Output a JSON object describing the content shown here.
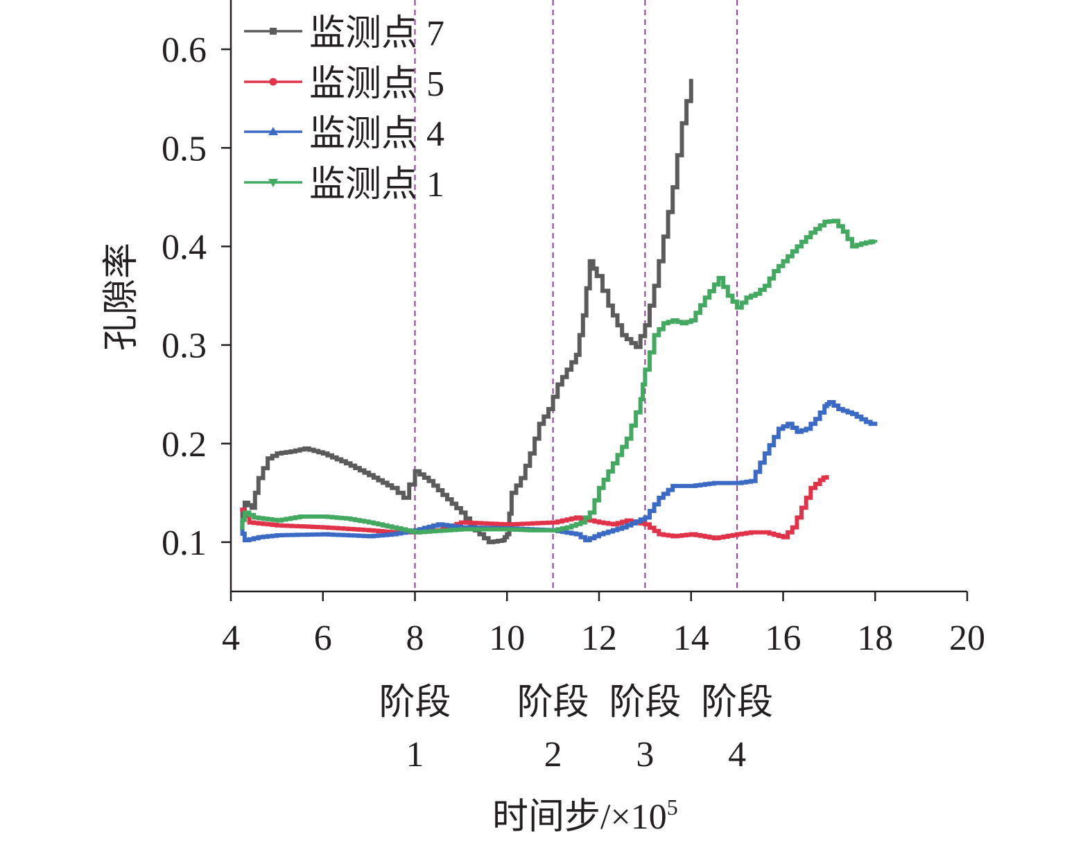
{
  "chart_data": {
    "type": "line",
    "title": "",
    "xlabel": "时间步/×10",
    "xlabel_sup": "5",
    "ylabel": "孔隙率",
    "xlim": [
      4,
      20
    ],
    "ylim": [
      0.05,
      0.65
    ],
    "xticks": [
      4,
      6,
      8,
      10,
      12,
      14,
      16,
      18,
      20
    ],
    "xtick_labels": [
      "4",
      "6",
      "8",
      "10",
      "12",
      "14",
      "16",
      "18",
      "20"
    ],
    "yticks": [
      0.1,
      0.2,
      0.3,
      0.4,
      0.5,
      0.6
    ],
    "ytick_labels": [
      "0.1",
      "0.2",
      "0.3",
      "0.4",
      "0.5",
      "0.6"
    ],
    "grid": false,
    "legend_position": "top-left",
    "stage_lines": [
      8,
      11,
      13,
      15
    ],
    "stage_line_color": "#8e3c9e",
    "stages": [
      {
        "x": 8,
        "word": "阶段",
        "num": "1"
      },
      {
        "x": 11,
        "word": "阶段",
        "num": "2"
      },
      {
        "x": 13,
        "word": "阶段",
        "num": "3"
      },
      {
        "x": 15,
        "word": "阶段",
        "num": "4"
      }
    ],
    "series": [
      {
        "name": "监测点 7",
        "color": "#5b5b5b",
        "marker": "square",
        "x": [
          4.2,
          4.3,
          4.45,
          4.6,
          4.8,
          5.0,
          5.3,
          5.6,
          6.0,
          6.5,
          7.0,
          7.5,
          7.75,
          8.0,
          8.3,
          8.6,
          9.0,
          9.3,
          9.6,
          9.9,
          10.0,
          10.1,
          10.3,
          10.5,
          10.7,
          10.9,
          11.1,
          11.3,
          11.5,
          11.65,
          11.8,
          11.95,
          12.2,
          12.5,
          12.8,
          13.0,
          13.2,
          13.4,
          13.6,
          13.8,
          14.0
        ],
        "y": [
          0.12,
          0.14,
          0.135,
          0.165,
          0.185,
          0.19,
          0.192,
          0.195,
          0.19,
          0.18,
          0.168,
          0.155,
          0.145,
          0.172,
          0.162,
          0.148,
          0.13,
          0.112,
          0.1,
          0.102,
          0.108,
          0.15,
          0.165,
          0.19,
          0.22,
          0.235,
          0.26,
          0.275,
          0.29,
          0.33,
          0.385,
          0.37,
          0.34,
          0.31,
          0.298,
          0.32,
          0.36,
          0.41,
          0.46,
          0.525,
          0.57
        ]
      },
      {
        "name": "监测点 5",
        "color": "#e0334a",
        "marker": "circle",
        "x": [
          4.2,
          4.4,
          5.0,
          6.0,
          7.0,
          7.5,
          8.0,
          8.5,
          9.0,
          10.0,
          11.0,
          11.5,
          12.0,
          12.3,
          12.6,
          13.0,
          13.3,
          13.6,
          14.0,
          14.5,
          15.0,
          15.3,
          15.6,
          16.0,
          16.2,
          16.4,
          16.6,
          16.8,
          16.95
        ],
        "y": [
          0.133,
          0.12,
          0.117,
          0.115,
          0.112,
          0.11,
          0.11,
          0.112,
          0.12,
          0.118,
          0.12,
          0.125,
          0.12,
          0.118,
          0.122,
          0.118,
          0.108,
          0.106,
          0.108,
          0.104,
          0.108,
          0.11,
          0.11,
          0.105,
          0.115,
          0.135,
          0.155,
          0.163,
          0.168
        ]
      },
      {
        "name": "监测点 4",
        "color": "#3a6ac4",
        "marker": "triangle-up",
        "x": [
          4.2,
          4.3,
          4.6,
          5.0,
          6.0,
          7.0,
          7.5,
          8.0,
          8.5,
          9.0,
          10.0,
          11.0,
          11.5,
          11.7,
          12.0,
          12.5,
          13.0,
          13.3,
          13.6,
          14.0,
          14.5,
          15.0,
          15.3,
          15.6,
          15.9,
          16.1,
          16.3,
          16.5,
          16.7,
          16.9,
          17.0,
          17.2,
          17.5,
          17.8,
          18.0
        ],
        "y": [
          0.115,
          0.102,
          0.105,
          0.107,
          0.108,
          0.106,
          0.108,
          0.112,
          0.118,
          0.115,
          0.114,
          0.112,
          0.108,
          0.102,
          0.108,
          0.115,
          0.125,
          0.145,
          0.157,
          0.157,
          0.16,
          0.16,
          0.162,
          0.19,
          0.215,
          0.22,
          0.212,
          0.215,
          0.225,
          0.238,
          0.242,
          0.235,
          0.23,
          0.222,
          0.218
        ]
      },
      {
        "name": "监测点 1",
        "color": "#43a860",
        "marker": "triangle-down",
        "x": [
          4.2,
          4.3,
          4.5,
          5.0,
          5.5,
          6.0,
          6.5,
          7.0,
          7.5,
          8.0,
          9.0,
          10.0,
          10.5,
          11.0,
          11.3,
          11.6,
          11.8,
          12.0,
          12.3,
          12.6,
          12.9,
          13.0,
          13.2,
          13.4,
          13.6,
          13.8,
          14.0,
          14.3,
          14.6,
          14.8,
          15.0,
          15.2,
          15.4,
          15.6,
          15.8,
          16.0,
          16.3,
          16.6,
          16.9,
          17.1,
          17.3,
          17.5,
          17.7,
          17.9,
          18.0
        ],
        "y": [
          0.115,
          0.13,
          0.125,
          0.122,
          0.126,
          0.126,
          0.124,
          0.12,
          0.115,
          0.11,
          0.113,
          0.113,
          0.112,
          0.112,
          0.115,
          0.12,
          0.13,
          0.155,
          0.18,
          0.205,
          0.245,
          0.275,
          0.31,
          0.322,
          0.325,
          0.322,
          0.325,
          0.348,
          0.368,
          0.35,
          0.338,
          0.348,
          0.352,
          0.36,
          0.375,
          0.385,
          0.4,
          0.414,
          0.425,
          0.426,
          0.415,
          0.4,
          0.403,
          0.405,
          0.404
        ]
      }
    ]
  }
}
